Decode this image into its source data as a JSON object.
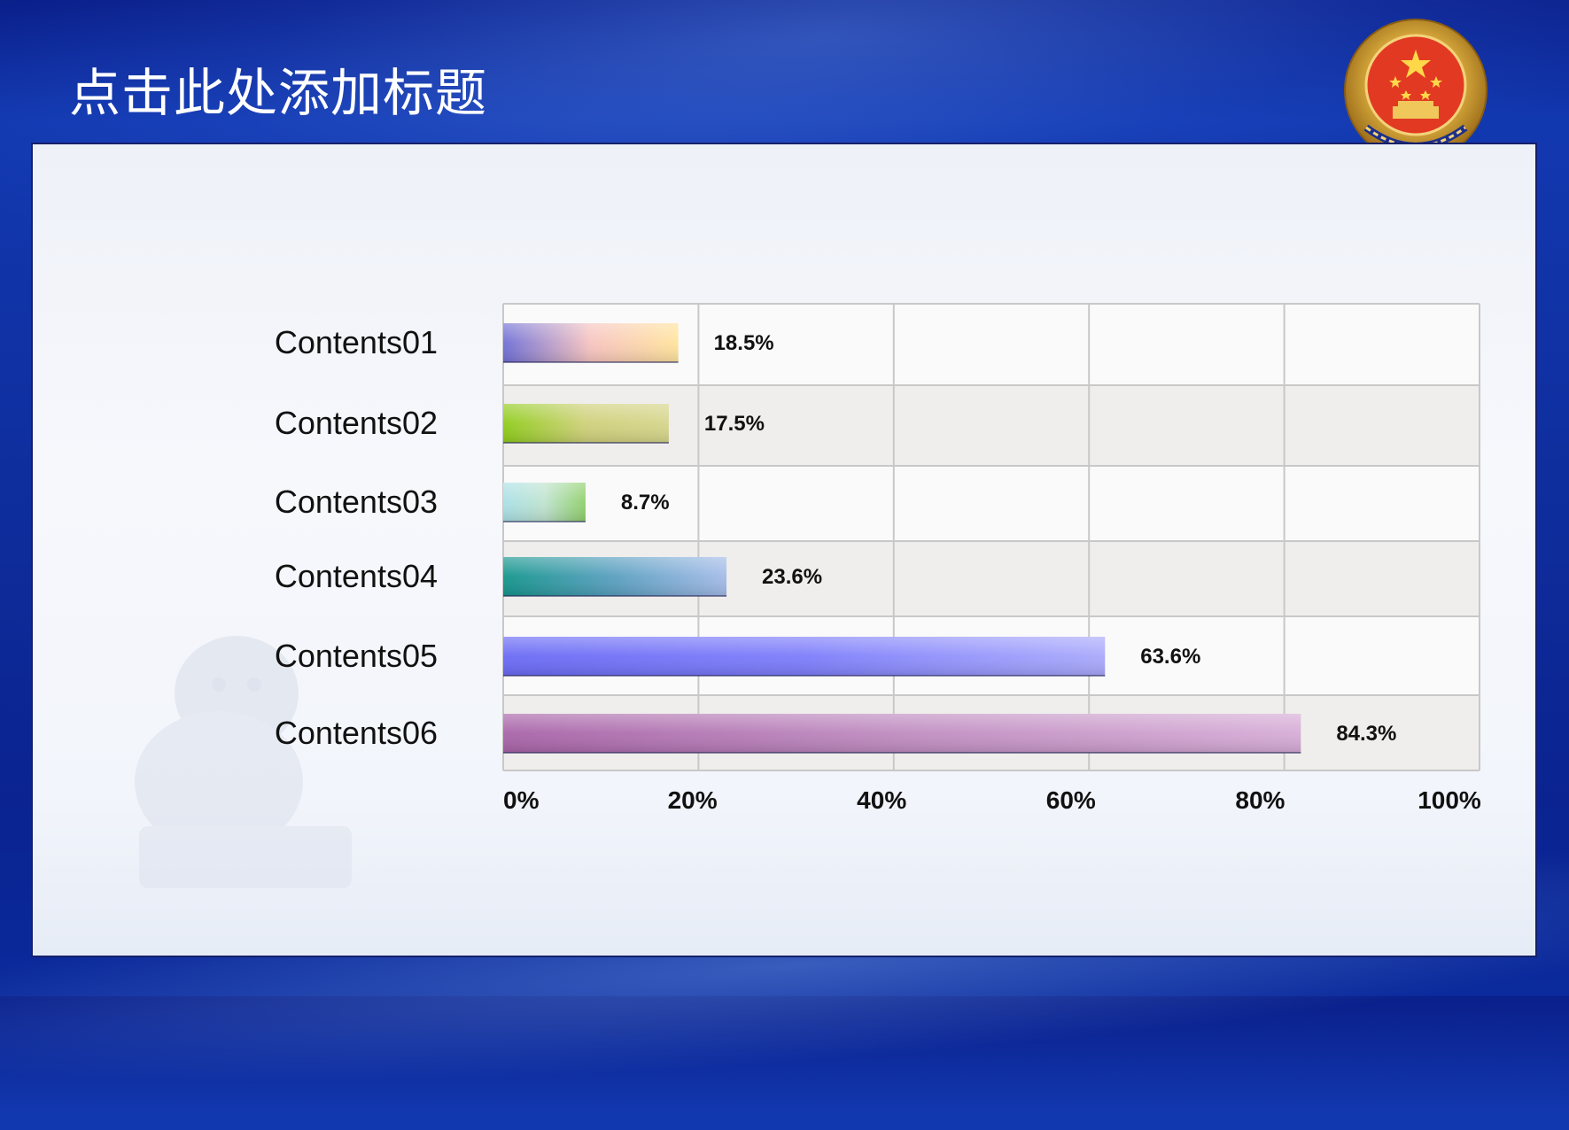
{
  "slide": {
    "title": "点击此处添加标题"
  },
  "colors": {
    "background": "#0e2c9a",
    "panel": "#f4f6fb",
    "grid": "#c8c8c8",
    "band": "#efeeec"
  },
  "chart_data": {
    "type": "bar",
    "orientation": "horizontal",
    "categories": [
      "Contents01",
      "Contents02",
      "Contents03",
      "Contents04",
      "Contents05",
      "Contents06"
    ],
    "values": [
      18.5,
      17.5,
      8.7,
      23.6,
      63.6,
      84.3
    ],
    "data_labels": [
      "18.5%",
      "17.5%",
      "8.7%",
      "23.6%",
      "63.6%",
      "84.3%"
    ],
    "x_ticks": [
      "0%",
      "20%",
      "40%",
      "60%",
      "80%",
      "100%"
    ],
    "xlim": [
      0,
      100
    ],
    "grid": true,
    "legend": "none",
    "bar_gradients": [
      [
        "#6f6fd6",
        "#f7c4c0",
        "#ffe39c"
      ],
      [
        "#8fcc1a",
        "#cfd07a",
        "#d6d58c"
      ],
      [
        "#a9e0e6",
        "#bfe3cf",
        "#8fcf6a"
      ],
      [
        "#14958c",
        "#5a9fc0",
        "#a4bbe8"
      ],
      [
        "#6a6af5",
        "#7d7dfb",
        "#a9a9fc"
      ],
      [
        "#a864a8",
        "#bf8cc0",
        "#d6acd6"
      ]
    ]
  }
}
